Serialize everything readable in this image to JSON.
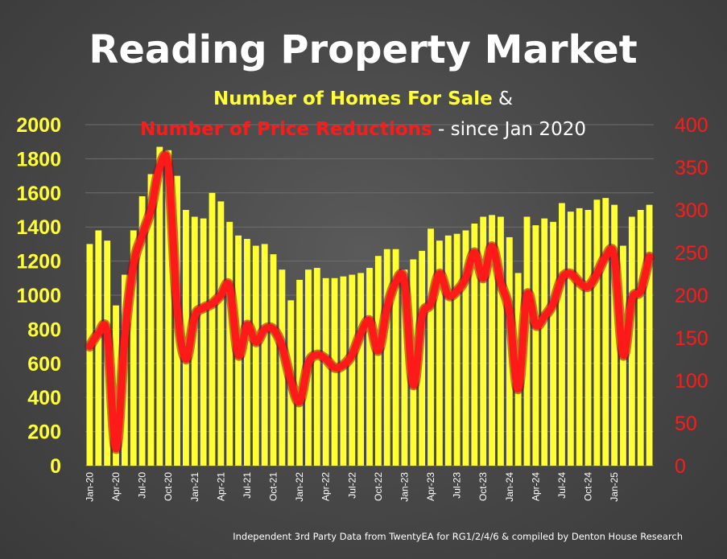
{
  "chart_data": {
    "type": "bar+line",
    "title": "Reading Property Market",
    "subtitle_part1": "Number of Homes For Sale",
    "subtitle_amp": " &",
    "subtitle_part2": "Number of Price Reductions",
    "subtitle_part3": " - since Jan 2020",
    "source": "Independent 3rd Party Data from TwentyEA for RG1/2/4/6 & compiled by Denton House Research",
    "y_left": {
      "ticks": [
        "0",
        "200",
        "400",
        "600",
        "800",
        "1000",
        "1200",
        "1400",
        "1600",
        "1800",
        "2000"
      ],
      "ylim": [
        0,
        2000
      ]
    },
    "y_right": {
      "ticks": [
        "0",
        "50",
        "100",
        "150",
        "200",
        "250",
        "300",
        "350",
        "400"
      ],
      "ylim": [
        0,
        400
      ]
    },
    "x_labels": [
      "Jan-20",
      "Apr-20",
      "Jul-20",
      "Oct-20",
      "Jan-21",
      "Apr-21",
      "Jul-21",
      "Oct-21",
      "Jan-22",
      "Apr-22",
      "Jul-22",
      "Oct-22",
      "Jan-23",
      "Apr-23",
      "Jul-23",
      "Oct-23",
      "Jan-24",
      "Apr-24",
      "Jul-24",
      "Oct-24",
      "Jan-25"
    ],
    "x_label_step": 3,
    "series": [
      {
        "name": "Number of Homes For Sale",
        "axis": "left",
        "color": "#ffff33",
        "values": [
          1300,
          1380,
          1320,
          940,
          1120,
          1380,
          1580,
          1710,
          1870,
          1850,
          1700,
          1500,
          1460,
          1450,
          1600,
          1550,
          1430,
          1350,
          1330,
          1290,
          1300,
          1240,
          1150,
          970,
          1090,
          1150,
          1160,
          1100,
          1100,
          1110,
          1120,
          1130,
          1160,
          1230,
          1270,
          1270,
          1150,
          1210,
          1260,
          1390,
          1320,
          1350,
          1360,
          1380,
          1420,
          1460,
          1470,
          1460,
          1340,
          1130,
          1460,
          1410,
          1450,
          1430,
          1540,
          1490,
          1510,
          1500,
          1560,
          1570,
          1530,
          1290,
          1460,
          1500,
          1530
        ]
      },
      {
        "name": "Number of Price Reductions",
        "axis": "right",
        "color": "#ff1a1a",
        "values": [
          140,
          155,
          155,
          20,
          150,
          235,
          270,
          300,
          350,
          350,
          185,
          125,
          175,
          185,
          190,
          200,
          210,
          130,
          165,
          145,
          160,
          160,
          140,
          100,
          75,
          120,
          130,
          125,
          115,
          118,
          130,
          155,
          170,
          135,
          185,
          215,
          215,
          95,
          175,
          190,
          225,
          200,
          205,
          220,
          250,
          220,
          257,
          215,
          180,
          90,
          200,
          165,
          175,
          190,
          220,
          225,
          215,
          210,
          225,
          245,
          245,
          130,
          195,
          205,
          245
        ]
      }
    ]
  }
}
